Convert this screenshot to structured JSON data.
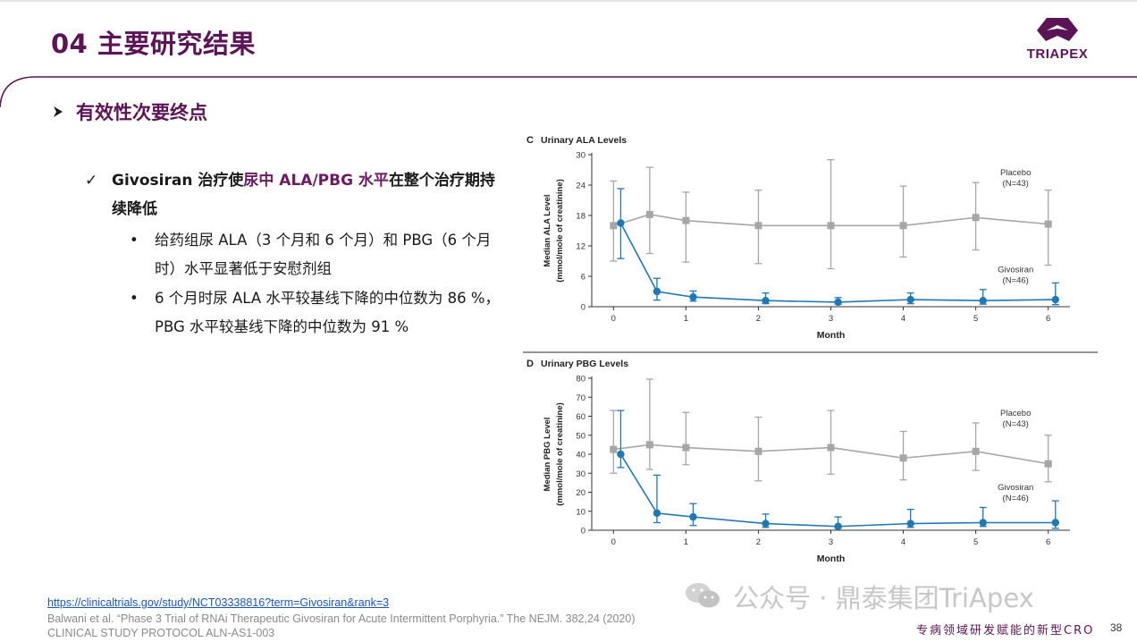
{
  "header": {
    "title": "04 主要研究结果",
    "logo_text": "TRIAPEX",
    "brand_color": "#5b1456"
  },
  "section": {
    "heading": "有效性次要终点"
  },
  "main_bullet": {
    "part1": "Givosiran 治疗使",
    "highlight": "尿中 ALA/PBG 水平",
    "part2": "在整个治疗期持续降低"
  },
  "sub_bullets": [
    "给药组尿 ALA（3 个月和 6 个月）和 PBG（6 个月时）水平显著低于安慰剂组",
    "6 个月时尿 ALA 水平较基线下降的中位数为 86 %，PBG 水平较基线下降的中位数为 91 %"
  ],
  "chart_data": [
    {
      "type": "line",
      "panel": "C",
      "title": "Urinary ALA Levels",
      "xlabel": "Month",
      "ylabel": [
        "Median ALA Level",
        "(mmol/mole of creatinine)"
      ],
      "xticks": [
        0,
        1,
        2,
        3,
        4,
        5,
        6
      ],
      "yticks": [
        0,
        6,
        12,
        18,
        24,
        30
      ],
      "ylim": [
        0,
        30
      ],
      "xlim": [
        -0.3,
        6.3
      ],
      "series": [
        {
          "name": "Placebo",
          "n_label": "(N=43)",
          "color": "#a6a6a6",
          "marker": "square",
          "x": [
            0,
            0.5,
            1,
            2,
            3,
            4,
            5,
            6
          ],
          "y": [
            16.0,
            18.2,
            17.0,
            16.0,
            16.0,
            16.0,
            17.6,
            16.3
          ],
          "err_low": [
            9.0,
            10.5,
            8.8,
            8.5,
            7.5,
            9.8,
            11.2,
            8.2
          ],
          "err_high": [
            24.8,
            27.5,
            22.6,
            23.0,
            29.0,
            23.8,
            24.5,
            23.0
          ]
        },
        {
          "name": "Givosiran",
          "n_label": "(N=46)",
          "color": "#1f77b4",
          "marker": "circle",
          "x": [
            0.1,
            0.6,
            1.1,
            2.1,
            3.1,
            4.1,
            5.1,
            6.1
          ],
          "y": [
            16.5,
            3.0,
            1.9,
            1.2,
            0.9,
            1.4,
            1.2,
            1.4
          ],
          "err_low": [
            9.5,
            1.3,
            1.1,
            0.6,
            0.5,
            0.6,
            0.5,
            0.4
          ],
          "err_high": [
            23.3,
            5.6,
            3.1,
            2.7,
            1.8,
            2.7,
            3.4,
            4.7
          ]
        }
      ]
    },
    {
      "type": "line",
      "panel": "D",
      "title": "Urinary PBG Levels",
      "xlabel": "Month",
      "ylabel": [
        "Median PBG Level",
        "(mmol/mole of creatinine)"
      ],
      "xticks": [
        0,
        1,
        2,
        3,
        4,
        5,
        6
      ],
      "yticks": [
        0,
        10,
        20,
        30,
        40,
        50,
        60,
        70,
        80
      ],
      "ylim": [
        0,
        80
      ],
      "xlim": [
        -0.3,
        6.3
      ],
      "series": [
        {
          "name": "Placebo",
          "n_label": "(N=43)",
          "color": "#a6a6a6",
          "marker": "square",
          "x": [
            0,
            0.5,
            1,
            2,
            3,
            4,
            5,
            6
          ],
          "y": [
            42.5,
            45.0,
            43.5,
            41.5,
            43.5,
            38.0,
            41.5,
            35.0
          ],
          "err_low": [
            30.0,
            32.0,
            34.5,
            26.0,
            29.5,
            26.5,
            31.5,
            25.5
          ],
          "err_high": [
            63.0,
            79.5,
            62.0,
            59.5,
            63.0,
            52.0,
            56.5,
            50.0
          ]
        },
        {
          "name": "Givosiran",
          "n_label": "(N=46)",
          "color": "#1f77b4",
          "marker": "circle",
          "x": [
            0.1,
            0.6,
            1.1,
            2.1,
            3.1,
            4.1,
            5.1,
            6.1
          ],
          "y": [
            40.0,
            9.0,
            7.0,
            3.5,
            2.0,
            3.5,
            4.0,
            4.0
          ],
          "err_low": [
            33.0,
            4.0,
            2.5,
            1.5,
            1.0,
            1.5,
            2.0,
            1.0
          ],
          "err_high": [
            63.0,
            29.0,
            14.0,
            8.5,
            7.0,
            11.0,
            12.0,
            15.5
          ]
        }
      ]
    }
  ],
  "references": {
    "link": "https://clinicaltrials.gov/study/NCT03338816?term=Givosiran&rank=3",
    "citation": "Balwani et al. “Phase 3 Trial of RNAi Therapeutic Givosiran for Acute Intermittent Porphyria.” The NEJM. 382,24 (2020)",
    "protocol": "CLINICAL STUDY PROTOCOL  ALN-AS1-003"
  },
  "watermark": "公众号 · 鼎泰集团TriApex",
  "footer": {
    "tagline": "专病领域研发赋能的新型CRO",
    "page": "38"
  }
}
